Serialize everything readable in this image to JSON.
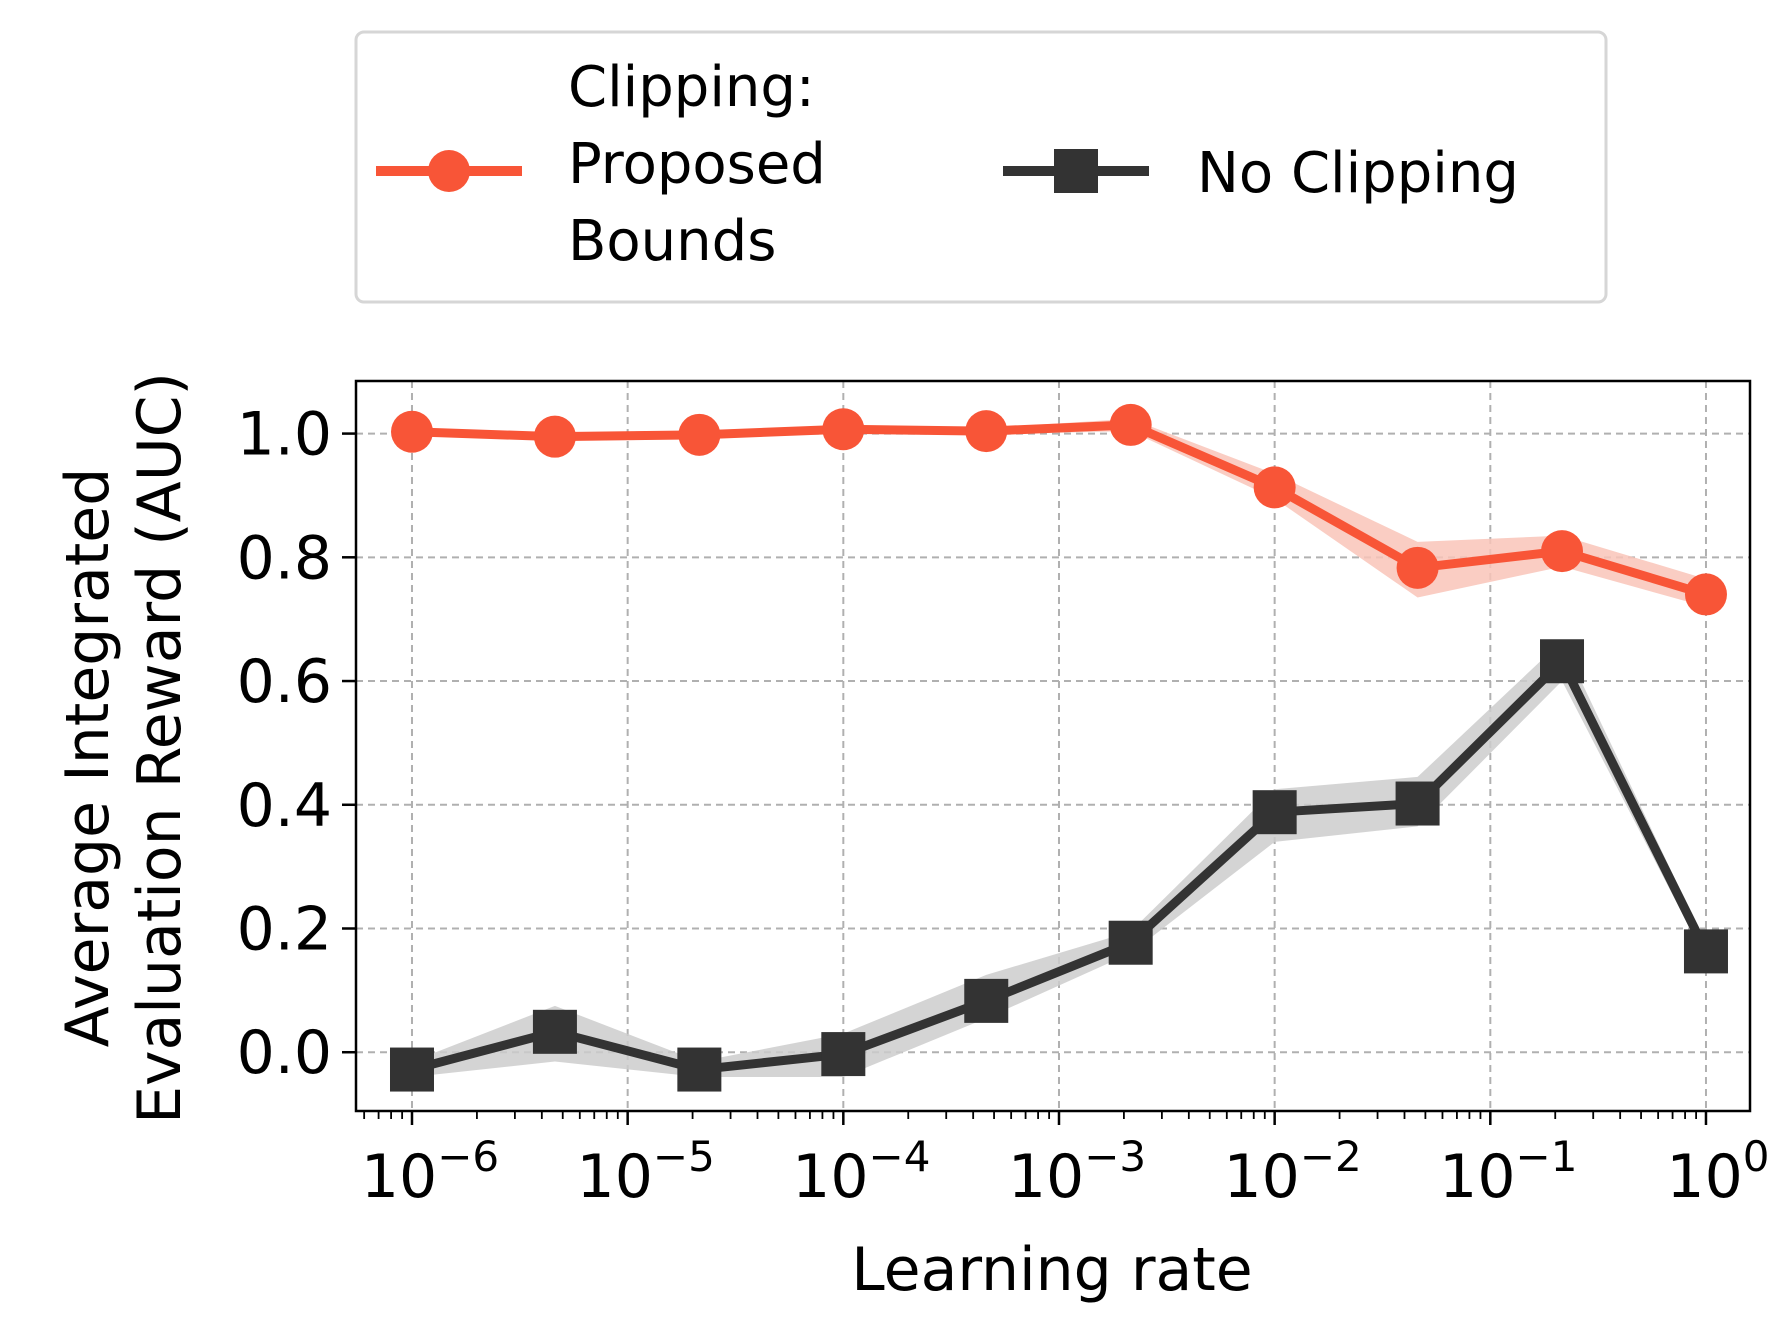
{
  "chart_data": {
    "type": "line",
    "xlabel": "Learning rate",
    "ylabel_lines": [
      "Average Integrated",
      "Evaluation Reward (AUC)"
    ],
    "xscale": "log",
    "xlim": [
      5.5e-07,
      1.6
    ],
    "ylim": [
      -0.095,
      1.085
    ],
    "y_ticks": [
      0.0,
      0.2,
      0.4,
      0.6,
      0.8,
      1.0
    ],
    "y_tick_labels": [
      "0.0",
      "0.2",
      "0.4",
      "0.6",
      "0.8",
      "1.0"
    ],
    "x_ticks": [
      {
        "value": 1e-06,
        "base": "10",
        "exp": "−6"
      },
      {
        "value": 1e-05,
        "base": "10",
        "exp": "−5"
      },
      {
        "value": 0.0001,
        "base": "10",
        "exp": "−4"
      },
      {
        "value": 0.001,
        "base": "10",
        "exp": "−3"
      },
      {
        "value": 0.01,
        "base": "10",
        "exp": "−2"
      },
      {
        "value": 0.1,
        "base": "10",
        "exp": "−1"
      },
      {
        "value": 1,
        "base": "10",
        "exp": "0"
      }
    ],
    "grid": true,
    "legend_position": "above",
    "series": [
      {
        "name_lines": [
          "Clipping:",
          "Proposed",
          "Bounds"
        ],
        "color": "#F85537",
        "band_color": "#F9C4B8",
        "marker": "circle",
        "x": [
          1e-06,
          4.6e-06,
          2.15e-05,
          0.0001,
          0.00046,
          0.00215,
          0.01,
          0.046,
          0.215,
          1
        ],
        "y": [
          1.003,
          0.995,
          0.998,
          1.007,
          1.004,
          1.014,
          0.913,
          0.783,
          0.81,
          0.74
        ],
        "lower": [
          0.998,
          0.99,
          0.993,
          1.002,
          0.999,
          1.004,
          0.895,
          0.735,
          0.785,
          0.72
        ],
        "upper": [
          1.008,
          1.0,
          1.003,
          1.012,
          1.009,
          1.024,
          0.935,
          0.825,
          0.835,
          0.765
        ]
      },
      {
        "name_lines": [
          "No Clipping"
        ],
        "color": "#333333",
        "band_color": "#CCCCCC",
        "marker": "square",
        "x": [
          1e-06,
          4.6e-06,
          2.15e-05,
          0.0001,
          0.00046,
          0.00215,
          0.01,
          0.046,
          0.215,
          1
        ],
        "y": [
          -0.028,
          0.033,
          -0.028,
          -0.003,
          0.083,
          0.177,
          0.388,
          0.402,
          0.632,
          0.163
        ],
        "lower": [
          -0.04,
          -0.015,
          -0.04,
          -0.04,
          0.055,
          0.16,
          0.34,
          0.365,
          0.6,
          0.15
        ],
        "upper": [
          -0.015,
          0.075,
          -0.015,
          0.03,
          0.125,
          0.195,
          0.425,
          0.445,
          0.665,
          0.175
        ]
      }
    ]
  }
}
